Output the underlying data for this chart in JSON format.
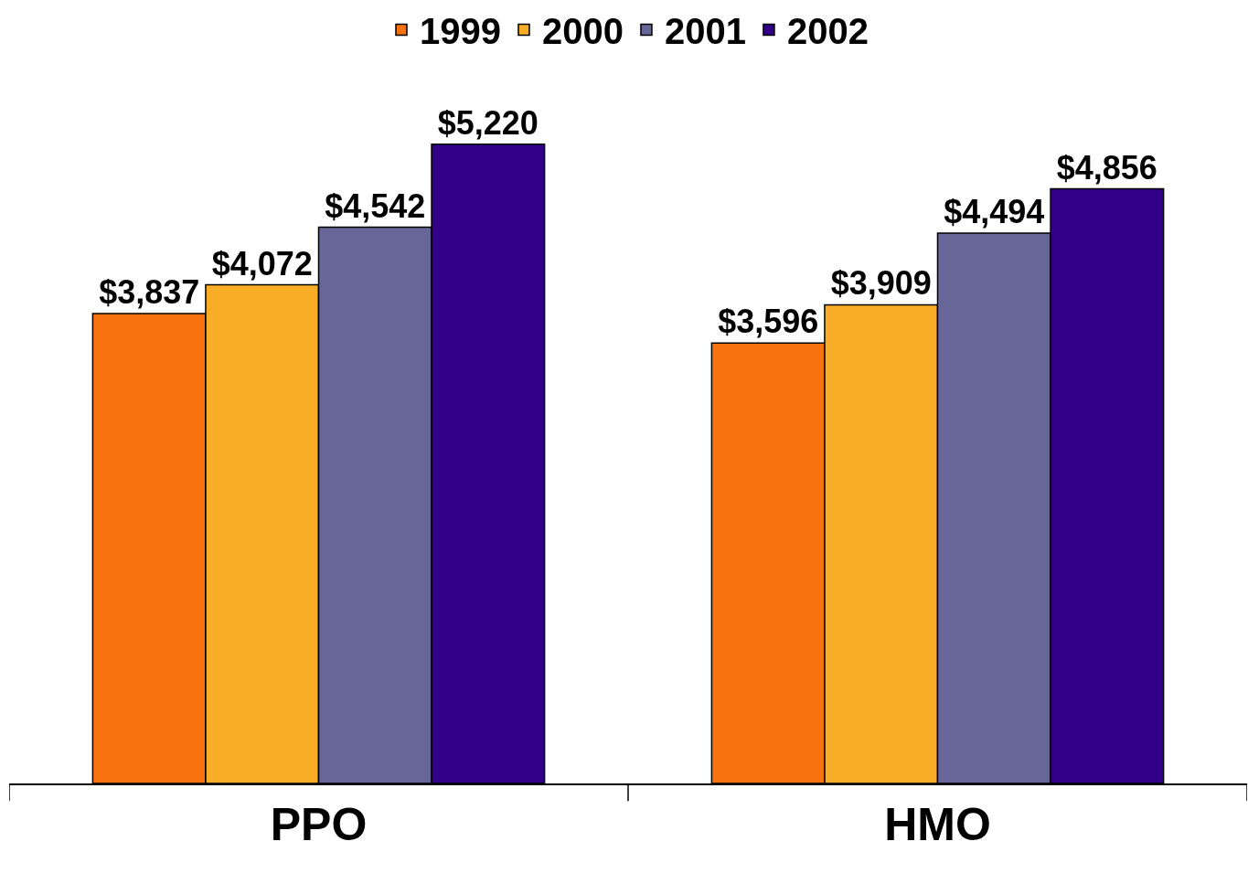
{
  "chart_data": {
    "type": "bar",
    "categories": [
      "PPO",
      "HMO"
    ],
    "series": [
      {
        "name": "1999",
        "color": "#f7710f",
        "values": [
          3837,
          3596
        ],
        "value_labels": [
          "$3,837",
          "$3,596"
        ]
      },
      {
        "name": "2000",
        "color": "#f9ad26",
        "values": [
          4072,
          3909
        ],
        "value_labels": [
          "$4,072",
          "$3,909"
        ]
      },
      {
        "name": "2001",
        "color": "#666699",
        "values": [
          4542,
          4494
        ],
        "value_labels": [
          "$4,542",
          "$4,494"
        ]
      },
      {
        "name": "2002",
        "color": "#330088",
        "values": [
          5220,
          4856
        ],
        "value_labels": [
          "$5,220",
          "$4,856"
        ]
      }
    ],
    "tick_labels": "x",
    "grid": false,
    "legend": "top"
  }
}
